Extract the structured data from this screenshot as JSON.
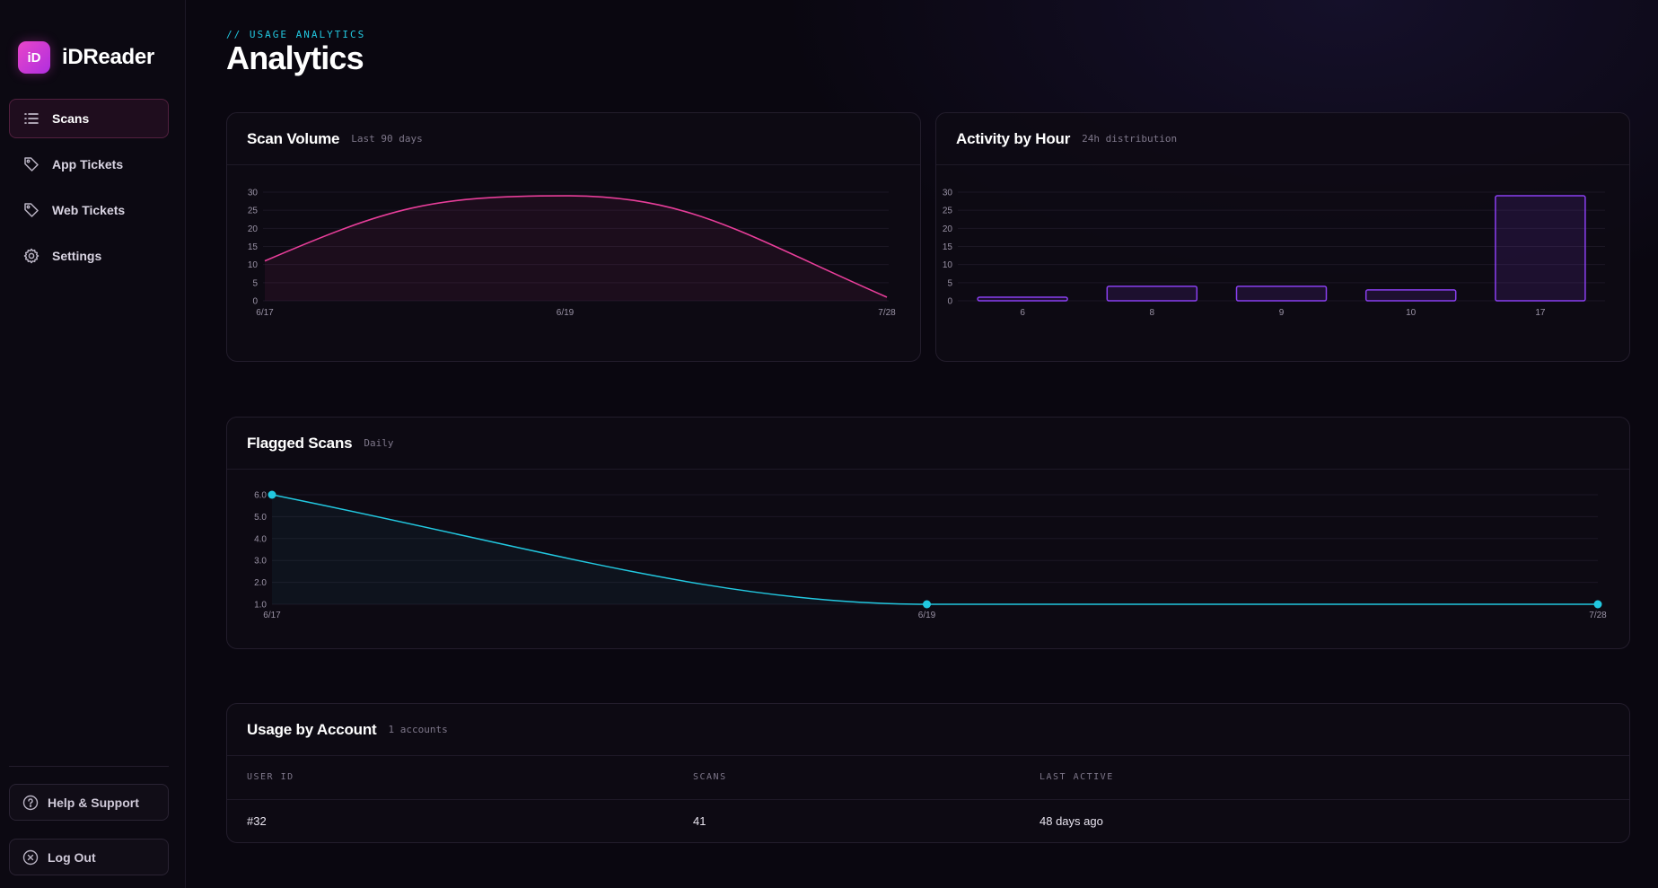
{
  "brand": {
    "logo_text": "iD",
    "name": "iDReader"
  },
  "nav": [
    {
      "label": "Scans",
      "icon": "list-icon",
      "active": true
    },
    {
      "label": "App Tickets",
      "icon": "tag-icon",
      "active": false
    },
    {
      "label": "Web Tickets",
      "icon": "tag-icon",
      "active": false
    },
    {
      "label": "Settings",
      "icon": "gear-icon",
      "active": false
    }
  ],
  "footer": {
    "help_label": "Help & Support",
    "logout_label": "Log Out"
  },
  "header": {
    "eyebrow": "// USAGE ANALYTICS",
    "title": "Analytics"
  },
  "cards": {
    "scan_volume": {
      "title": "Scan Volume",
      "subtitle": "Last 90 days"
    },
    "activity": {
      "title": "Activity by Hour",
      "subtitle": "24h distribution"
    },
    "flagged": {
      "title": "Flagged Scans",
      "subtitle": "Daily"
    },
    "accounts": {
      "title": "Usage by Account",
      "subtitle": "1 accounts"
    }
  },
  "colors": {
    "pink": "#e83e9a",
    "purple": "#8a3ff0",
    "cyan": "#22c8e0"
  },
  "chart_data": [
    {
      "type": "line",
      "name": "scan-volume",
      "x": [
        "6/17",
        "6/19",
        "7/28"
      ],
      "series": [
        {
          "values": [
            11,
            29,
            1
          ]
        }
      ],
      "yticks": [
        0,
        5,
        10,
        15,
        20,
        25,
        30
      ],
      "ylim": [
        0,
        30
      ],
      "grid": true
    },
    {
      "type": "bar",
      "name": "activity-by-hour",
      "categories": [
        "6",
        "8",
        "9",
        "10",
        "17"
      ],
      "values": [
        1,
        4,
        4,
        3,
        29
      ],
      "yticks": [
        0,
        5,
        10,
        15,
        20,
        25,
        30
      ],
      "ylim": [
        0,
        30
      ],
      "grid": true
    },
    {
      "type": "line",
      "name": "flagged-scans",
      "x": [
        "6/17",
        "6/19",
        "7/28"
      ],
      "series": [
        {
          "values": [
            6,
            1,
            1
          ]
        }
      ],
      "yticks": [
        "1.0",
        "2.0",
        "3.0",
        "4.0",
        "5.0",
        "6.0"
      ],
      "ylim": [
        1,
        6
      ],
      "grid": true
    }
  ],
  "table": {
    "columns": [
      "USER ID",
      "SCANS",
      "LAST ACTIVE"
    ],
    "rows": [
      [
        "#32",
        "41",
        "48 days ago"
      ]
    ]
  }
}
